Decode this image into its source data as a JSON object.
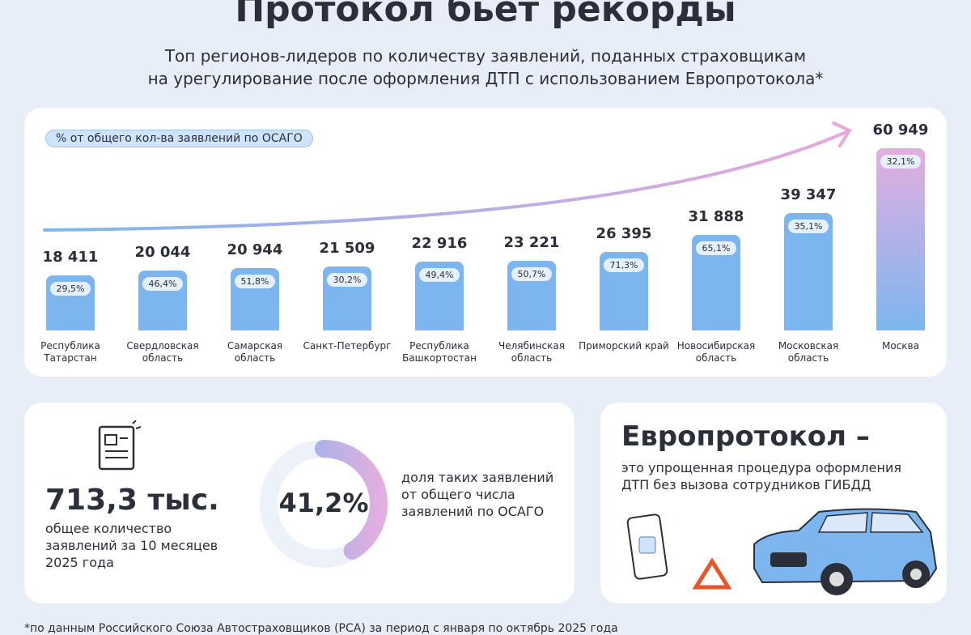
{
  "header": {
    "title": "Протокол бьет рекорды",
    "subtitle_lines": [
      "Топ регионов-лидеров по количеству заявлений, поданных страховщикам",
      "на урегулирование после оформления ДТП с использованием Европротокола*"
    ]
  },
  "chart_data": {
    "type": "bar",
    "legend_label": "% от общего кол-ва заявлений по ОСАГО",
    "color": "#7db6ee",
    "top_color": "#e3aee0",
    "categories": [
      "Республика Татарстан",
      "Свердловская область",
      "Самарская область",
      "Санкт-Петербург",
      "Республика Башкортостан",
      "Челябинская область",
      "Приморский край",
      "Новосибирская область",
      "Московская область",
      "Москва"
    ],
    "values": [
      18411,
      20044,
      20944,
      21509,
      22916,
      23221,
      26395,
      31888,
      39347,
      60949
    ],
    "value_labels": [
      "18 411",
      "20 044",
      "20 944",
      "21 509",
      "22 916",
      "23 221",
      "26 395",
      "31 888",
      "39 347",
      "60 949"
    ],
    "share_labels": [
      "29,5%",
      "46,4%",
      "51,8%",
      "30,2%",
      "49,4%",
      "50,7%",
      "71,3%",
      "65,1%",
      "35,1%",
      "32,1%"
    ]
  },
  "stats": {
    "total_label": "713,3 тыс.",
    "total_caption": "общее количество заявлений за 10 месяцев 2025 года",
    "share": 41.2,
    "share_label": "41,2%",
    "share_caption": "доля таких заявлений от общего числа заявлений по ОСАГО"
  },
  "definition": {
    "title": "Европротокол –",
    "text": "это упрощенная процедура оформления ДТП без вызова сотрудников ГИБДД"
  },
  "footnote": "*по данным Российского Союза Автостраховщиков (РСА) за период с января по октябрь 2025 года"
}
